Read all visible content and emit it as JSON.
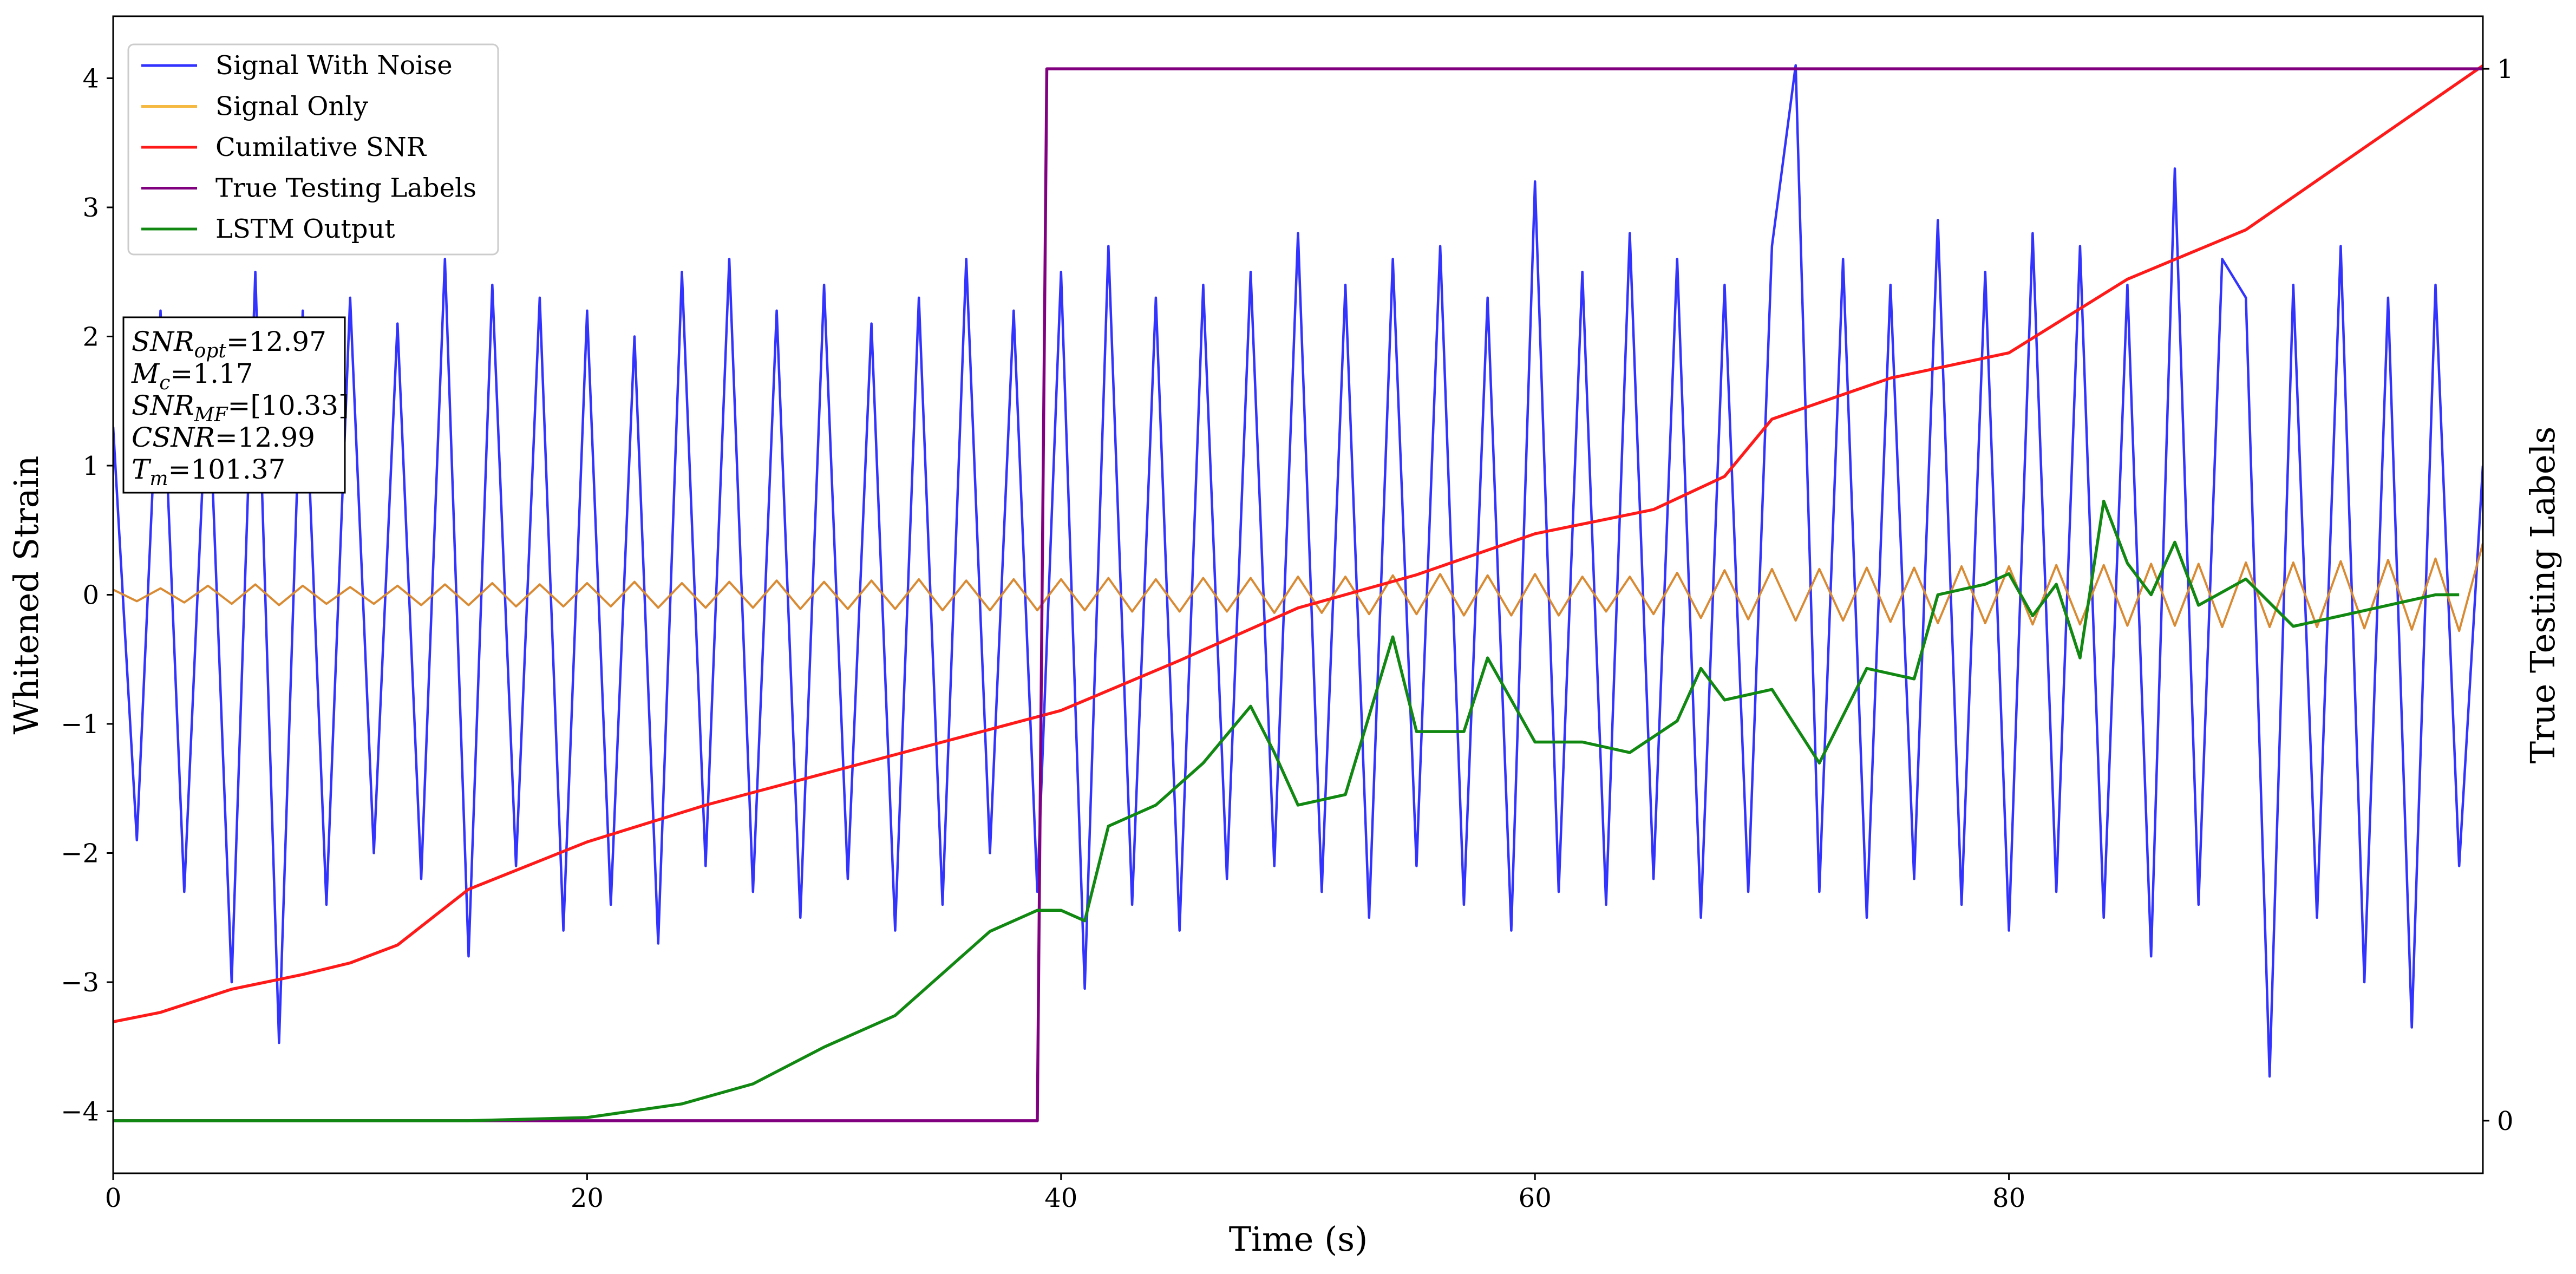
{
  "chart_data": {
    "type": "line",
    "xlabel": "Time (s)",
    "ylabel": "Whitened Strain",
    "y2label": "True Testing Labels",
    "xlim": [
      0,
      100
    ],
    "xticks": [
      0,
      20,
      40,
      60,
      80
    ],
    "ylim": [
      -4.48,
      4.48
    ],
    "yticks": [
      {
        "value": -4,
        "label": "−4"
      },
      {
        "value": -3,
        "label": "−3"
      },
      {
        "value": -2,
        "label": "−2"
      },
      {
        "value": -1,
        "label": "−1"
      },
      0,
      1,
      2,
      3,
      4
    ],
    "y2lim": [
      -0.05,
      1.05
    ],
    "y2ticks": [
      0,
      1
    ],
    "legend": "upper left",
    "series": [
      {
        "name": "Signal With Noise",
        "color": "#3333ff",
        "legend_color": "#3333ff",
        "x": [
          0,
          1,
          2,
          3,
          4,
          5,
          6,
          7,
          8,
          9,
          10,
          11,
          12,
          13,
          14,
          15,
          16,
          17,
          18,
          19,
          20,
          21,
          22,
          23,
          24,
          25,
          26,
          27,
          28,
          29,
          30,
          31,
          32,
          33,
          34,
          35,
          36,
          37,
          38,
          39,
          40,
          41,
          42,
          43,
          44,
          45,
          46,
          47,
          48,
          49,
          50,
          51,
          52,
          53,
          54,
          55,
          56,
          57,
          58,
          59,
          60,
          61,
          62,
          63,
          64,
          65,
          66,
          67,
          68,
          69,
          70,
          71,
          72,
          73,
          74,
          75,
          76,
          77,
          78,
          79,
          80,
          81,
          82,
          83,
          84,
          85,
          86,
          87,
          88,
          89,
          90,
          91,
          92,
          93,
          94,
          95,
          96,
          97,
          98,
          99,
          100
        ],
        "values": [
          1.3,
          -1.9,
          2.2,
          -2.3,
          1.8,
          -3.0,
          2.5,
          -3.47,
          2.2,
          -2.4,
          2.3,
          -2.0,
          2.1,
          -2.2,
          2.6,
          -2.8,
          2.4,
          -2.1,
          2.3,
          -2.6,
          2.2,
          -2.4,
          2.0,
          -2.7,
          2.5,
          -2.1,
          2.6,
          -2.3,
          2.2,
          -2.5,
          2.4,
          -2.2,
          2.1,
          -2.6,
          2.3,
          -2.4,
          2.6,
          -2.0,
          2.2,
          -2.3,
          2.5,
          -3.05,
          2.7,
          -2.4,
          2.3,
          -2.6,
          2.4,
          -2.2,
          2.5,
          -2.1,
          2.8,
          -2.3,
          2.4,
          -2.5,
          2.6,
          -2.1,
          2.7,
          -2.4,
          2.3,
          -2.6,
          3.2,
          -2.3,
          2.5,
          -2.4,
          2.8,
          -2.2,
          2.6,
          -2.5,
          2.4,
          -2.3,
          2.7,
          4.1,
          -2.3,
          2.6,
          -2.5,
          2.4,
          -2.2,
          2.9,
          -2.4,
          2.5,
          -2.6,
          2.8,
          -2.3,
          2.7,
          -2.5,
          2.4,
          -2.8,
          3.3,
          -2.4,
          2.6,
          2.3,
          -3.73,
          2.4,
          -2.5,
          2.7,
          -3.0,
          2.3,
          -3.35,
          2.4,
          -2.1,
          1.0
        ]
      },
      {
        "name": "Signal Only",
        "color": "#d98b34",
        "legend_color": "#f5b841",
        "x": [
          0,
          1,
          2,
          3,
          4,
          5,
          6,
          7,
          8,
          9,
          10,
          11,
          12,
          13,
          14,
          15,
          16,
          17,
          18,
          19,
          20,
          21,
          22,
          23,
          24,
          25,
          26,
          27,
          28,
          29,
          30,
          31,
          32,
          33,
          34,
          35,
          36,
          37,
          38,
          39,
          40,
          41,
          42,
          43,
          44,
          45,
          46,
          47,
          48,
          49,
          50,
          51,
          52,
          53,
          54,
          55,
          56,
          57,
          58,
          59,
          60,
          61,
          62,
          63,
          64,
          65,
          66,
          67,
          68,
          69,
          70,
          71,
          72,
          73,
          74,
          75,
          76,
          77,
          78,
          79,
          80,
          81,
          82,
          83,
          84,
          85,
          86,
          87,
          88,
          89,
          90,
          91,
          92,
          93,
          94,
          95,
          96,
          97,
          98,
          99,
          100
        ],
        "values": [
          0.04,
          -0.05,
          0.05,
          -0.06,
          0.07,
          -0.07,
          0.08,
          -0.08,
          0.07,
          -0.07,
          0.06,
          -0.07,
          0.07,
          -0.08,
          0.08,
          -0.08,
          0.09,
          -0.09,
          0.08,
          -0.09,
          0.09,
          -0.09,
          0.1,
          -0.1,
          0.09,
          -0.1,
          0.1,
          -0.1,
          0.11,
          -0.11,
          0.1,
          -0.11,
          0.11,
          -0.11,
          0.12,
          -0.12,
          0.11,
          -0.12,
          0.12,
          -0.12,
          0.12,
          -0.12,
          0.13,
          -0.13,
          0.12,
          -0.13,
          0.13,
          -0.13,
          0.13,
          -0.14,
          0.14,
          -0.14,
          0.14,
          -0.15,
          0.15,
          -0.15,
          0.16,
          -0.16,
          0.15,
          -0.16,
          0.16,
          -0.16,
          0.14,
          -0.13,
          0.14,
          -0.15,
          0.17,
          -0.18,
          0.19,
          -0.19,
          0.2,
          -0.2,
          0.2,
          -0.2,
          0.21,
          -0.21,
          0.21,
          -0.22,
          0.22,
          -0.22,
          0.22,
          -0.23,
          0.23,
          -0.23,
          0.23,
          -0.24,
          0.24,
          -0.24,
          0.24,
          -0.25,
          0.25,
          -0.25,
          0.25,
          -0.25,
          0.26,
          -0.26,
          0.27,
          -0.27,
          0.28,
          -0.28,
          0.4
        ]
      },
      {
        "name": "Cumilative SNR",
        "color": "#ff1a1a",
        "legend_color": "#ff1a1a",
        "axis": "y2",
        "x": [
          0,
          2,
          5,
          8,
          10,
          12,
          15,
          20,
          25,
          30,
          35,
          40,
          45,
          50,
          55,
          60,
          65,
          68,
          70,
          75,
          80,
          85,
          90,
          95,
          100
        ],
        "values": [
          0.094,
          0.103,
          0.125,
          0.139,
          0.15,
          0.167,
          0.22,
          0.265,
          0.3,
          0.33,
          0.36,
          0.39,
          0.4375,
          0.4875,
          0.519,
          0.558,
          0.581,
          0.6125,
          0.667,
          0.706,
          0.73,
          0.8,
          0.847,
          0.925,
          1.003
        ]
      },
      {
        "name": "True Testing Labels",
        "color": "#800080",
        "legend_color": "#800080",
        "axis": "y2",
        "x": [
          0,
          39,
          39.4,
          100
        ],
        "values": [
          0,
          0,
          1,
          1
        ]
      },
      {
        "name": "LSTM Output",
        "color": "#118811",
        "legend_color": "#118811",
        "axis": "y2",
        "x": [
          0,
          15,
          20,
          24,
          27,
          30,
          33,
          35,
          37,
          39,
          40,
          41,
          42,
          44,
          46,
          48,
          49,
          50,
          52,
          54,
          55,
          57,
          58,
          60,
          62,
          64,
          66,
          67,
          68,
          70,
          72,
          74,
          76,
          77,
          79,
          80,
          81,
          82,
          83,
          84,
          85,
          86,
          87,
          88,
          90,
          92,
          94,
          96,
          98,
          99
        ],
        "values": [
          0,
          0,
          0.003,
          0.016,
          0.035,
          0.07,
          0.1,
          0.14,
          0.18,
          0.2,
          0.2,
          0.19,
          0.28,
          0.3,
          0.34,
          0.394,
          0.35,
          0.3,
          0.31,
          0.46,
          0.37,
          0.37,
          0.44,
          0.36,
          0.36,
          0.35,
          0.38,
          0.43,
          0.4,
          0.41,
          0.34,
          0.43,
          0.42,
          0.5,
          0.51,
          0.52,
          0.48,
          0.51,
          0.44,
          0.589,
          0.53,
          0.5,
          0.55,
          0.49,
          0.515,
          0.47,
          0.48,
          0.49,
          0.5,
          0.5
        ]
      }
    ],
    "annotations": [
      {
        "symbol": "SNR",
        "subscript": "opt",
        "text": "=12.97"
      },
      {
        "symbol": "M",
        "subscript": "c",
        "text": "=1.17"
      },
      {
        "symbol": "SNR",
        "subscript": "MF",
        "text": "=[10.33]"
      },
      {
        "symbol": "CSNR",
        "text": "=12.99"
      },
      {
        "symbol": "T",
        "subscript": "m",
        "text": "=101.37"
      }
    ]
  }
}
